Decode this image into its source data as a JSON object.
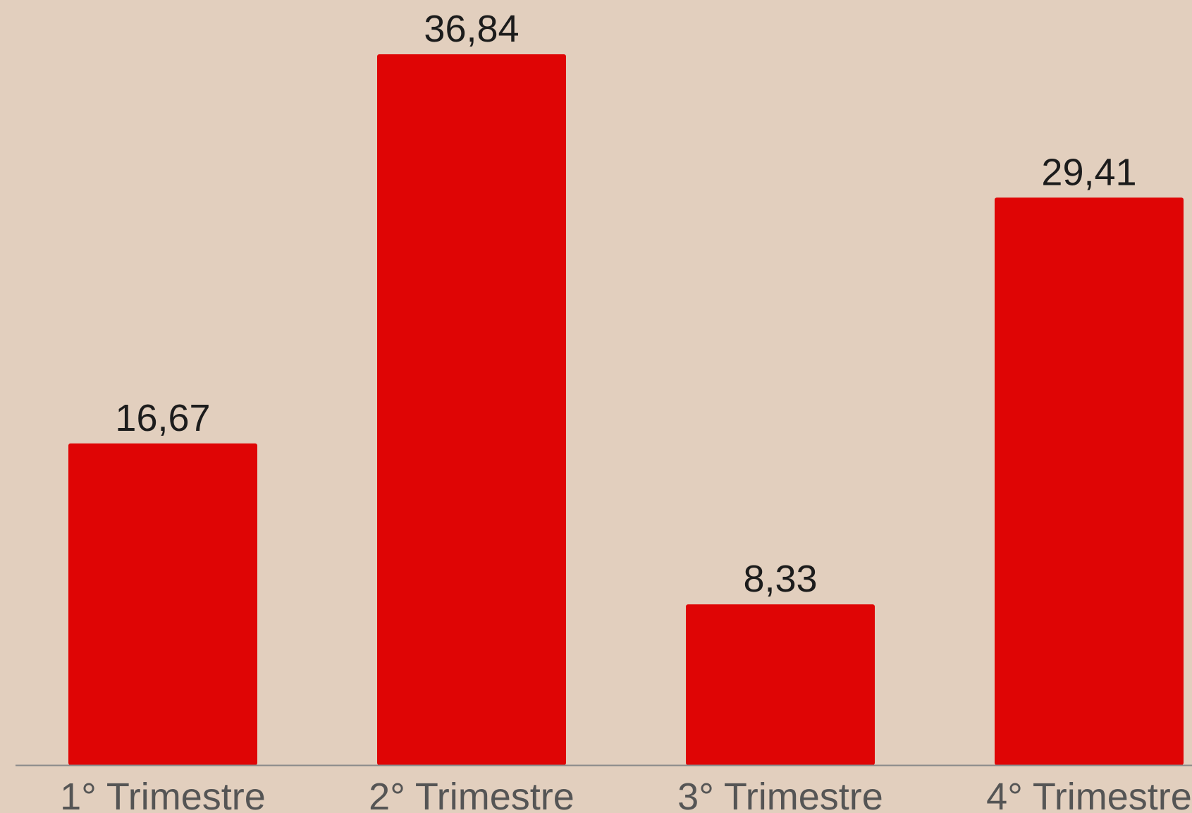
{
  "chart_data": {
    "type": "bar",
    "categories": [
      "1° Trimestre",
      "2° Trimestre",
      "3° Trimestre",
      "4° Trimestre"
    ],
    "values": [
      16.67,
      36.84,
      8.33,
      29.41
    ],
    "value_labels": [
      "16,67",
      "36,84",
      "8,33",
      "29,41"
    ],
    "title": "",
    "xlabel": "",
    "ylabel": "",
    "grid": false,
    "legend": "none",
    "colors": {
      "background": "#e2cfbe",
      "bar": "#df0505",
      "axis": "#8a8a8a",
      "value_text": "#1c1c1c",
      "category_text": "#555555"
    }
  }
}
